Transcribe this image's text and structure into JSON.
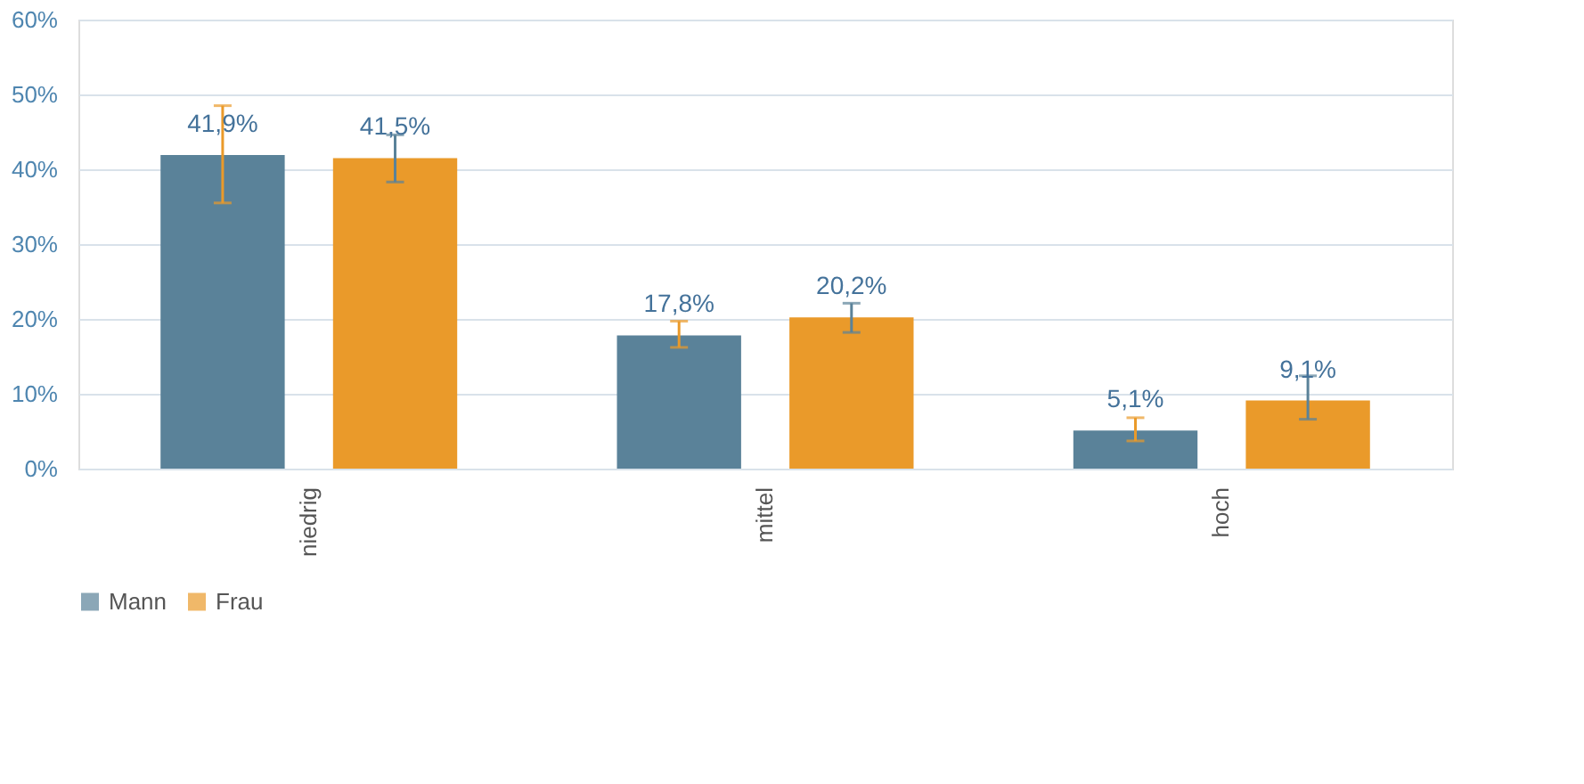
{
  "chart_data": {
    "type": "bar",
    "categories": [
      "niedrig",
      "mittel",
      "hoch"
    ],
    "series": [
      {
        "name": "Mann",
        "color": "#5a8299",
        "values": [
          41.9,
          17.8,
          5.1
        ],
        "errors": [
          [
            35.5,
            48.5
          ],
          [
            16.2,
            19.7
          ],
          [
            3.7,
            6.8
          ]
        ],
        "value_labels": [
          "41,9%",
          "17,8%",
          "5,1%"
        ]
      },
      {
        "name": "Frau",
        "color": "#ea9a2a",
        "values": [
          41.5,
          20.2,
          9.1
        ],
        "errors": [
          [
            38.3,
            44.6
          ],
          [
            18.2,
            22.1
          ],
          [
            6.6,
            12.4
          ]
        ],
        "value_labels": [
          "41,5%",
          "20,2%",
          "9,1%"
        ]
      }
    ],
    "ylim": [
      0,
      60
    ],
    "yticks": [
      {
        "value": 0,
        "label": "0%"
      },
      {
        "value": 10,
        "label": "10%"
      },
      {
        "value": 20,
        "label": "20%"
      },
      {
        "value": 30,
        "label": "30%"
      },
      {
        "value": 40,
        "label": "40%"
      },
      {
        "value": 50,
        "label": "50%"
      },
      {
        "value": 60,
        "label": "60%"
      }
    ],
    "grid": "y",
    "legend": "bottom"
  }
}
